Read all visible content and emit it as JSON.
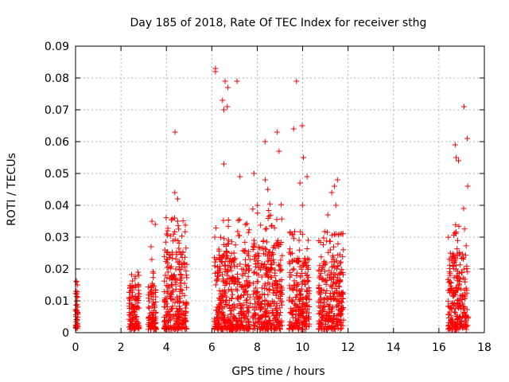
{
  "chart_data": {
    "type": "scatter",
    "title": "Day 185 of 2018, Rate Of TEC Index for receiver sthg",
    "xlabel": "GPS time / hours",
    "ylabel": "ROTI / TECUs",
    "xlim": [
      0,
      18
    ],
    "ylim": [
      0,
      0.09
    ],
    "xticks": [
      0,
      2,
      4,
      6,
      8,
      10,
      12,
      14,
      16,
      18
    ],
    "yticks": [
      0,
      0.01,
      0.02,
      0.03,
      0.04,
      0.05,
      0.06,
      0.07,
      0.08,
      0.09
    ],
    "xtick_labels": [
      "0",
      "2",
      "4",
      "6",
      "8",
      "10",
      "12",
      "14",
      "16",
      "18"
    ],
    "ytick_labels": [
      "0",
      "0.01",
      "0.02",
      "0.03",
      "0.04",
      "0.05",
      "0.06",
      "0.07",
      "0.08",
      "0.09"
    ],
    "grid": true,
    "marker": "+",
    "color": "#ff0000",
    "clusters": [
      {
        "x_range": [
          0.0,
          0.1
        ],
        "typical_max": 0.012,
        "peak_values": [
          0.016,
          0.015,
          0.013
        ]
      },
      {
        "x_range": [
          2.35,
          2.8
        ],
        "typical_max": 0.014,
        "peak_values": [
          0.019,
          0.018,
          0.017
        ]
      },
      {
        "x_range": [
          3.2,
          3.55
        ],
        "typical_max": 0.014,
        "peak_values": [
          0.035,
          0.034,
          0.027,
          0.023
        ]
      },
      {
        "x_range": [
          3.9,
          4.9
        ],
        "typical_max": 0.025,
        "peak_values": [
          0.063,
          0.044,
          0.042,
          0.036,
          0.035
        ]
      },
      {
        "x_range": [
          6.1,
          7.7
        ],
        "typical_max": 0.025,
        "peak_values": [
          0.083,
          0.082,
          0.079,
          0.077,
          0.079,
          0.073,
          0.071,
          0.07,
          0.053,
          0.049
        ]
      },
      {
        "x_range": [
          7.8,
          9.1
        ],
        "typical_max": 0.028,
        "peak_values": [
          0.063,
          0.06,
          0.057,
          0.05,
          0.048,
          0.045,
          0.04
        ]
      },
      {
        "x_range": [
          9.4,
          10.3
        ],
        "typical_max": 0.022,
        "peak_values": [
          0.079,
          0.065,
          0.064,
          0.055,
          0.049,
          0.047,
          0.04
        ]
      },
      {
        "x_range": [
          10.7,
          11.8
        ],
        "typical_max": 0.022,
        "peak_values": [
          0.048,
          0.046,
          0.044,
          0.04,
          0.037
        ]
      },
      {
        "x_range": [
          16.4,
          17.3
        ],
        "typical_max": 0.024,
        "peak_values": [
          0.071,
          0.061,
          0.059,
          0.055,
          0.054,
          0.046,
          0.039
        ]
      }
    ]
  }
}
